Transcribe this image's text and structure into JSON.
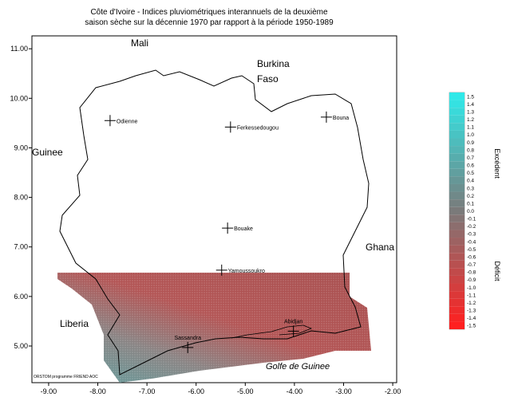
{
  "title": [
    "Côte d'Ivoire - Indices pluviométriques interannuels de la deuxième",
    "saison sèche sur la décennie 1970 par rapport à la période 1950-1989"
  ],
  "map": {
    "xlim": [
      -9.34,
      -1.92
    ],
    "ylim": [
      4.26,
      11.26
    ],
    "xticks": [
      {
        "value": -9,
        "label": "-9.00"
      },
      {
        "value": -8,
        "label": "-8.00"
      },
      {
        "value": -7,
        "label": "-7.00"
      },
      {
        "value": -6,
        "label": "-6.00"
      },
      {
        "value": -5,
        "label": "-5.00"
      },
      {
        "value": -4,
        "label": "-4.00"
      },
      {
        "value": -3,
        "label": "-3.00"
      },
      {
        "value": -2,
        "label": "-2.00"
      }
    ],
    "yticks": [
      {
        "value": 5,
        "label": "5.00"
      },
      {
        "value": 6,
        "label": "6.00"
      },
      {
        "value": 7,
        "label": "7.00"
      },
      {
        "value": 8,
        "label": "8.00"
      },
      {
        "value": 9,
        "label": "9.00"
      },
      {
        "value": 10,
        "label": "10.00"
      },
      {
        "value": 11,
        "label": "11.00"
      }
    ],
    "countries": [
      "Mali",
      "Burkina",
      "Faso",
      "Guinee",
      "Ghana",
      "Liberia"
    ],
    "sea": "Golfe de Guinee",
    "cities": [
      {
        "name": "Odienne",
        "lon": -7.75,
        "lat": 9.55
      },
      {
        "name": "Ferkessedougou",
        "lon": -5.3,
        "lat": 9.42
      },
      {
        "name": "Bouna",
        "lon": -3.35,
        "lat": 9.62
      },
      {
        "name": "Bouake",
        "lon": -5.36,
        "lat": 7.38
      },
      {
        "name": "Yamoussoukro",
        "lon": -5.48,
        "lat": 6.53
      },
      {
        "name": "Sassandra",
        "lon": -6.17,
        "lat": 4.97
      },
      {
        "name": "Abidjan",
        "lon": -4.02,
        "lat": 5.3
      }
    ],
    "credit": "ORSTOM programme FRIEND AOC"
  },
  "legend": {
    "labels": [
      "1.5",
      "1.4",
      "1.3",
      "1.2",
      "1.1",
      "1.0",
      "0.9",
      "0.8",
      "0.7",
      "0.6",
      "0.5",
      "0.4",
      "0.3",
      "0.2",
      "0.1",
      "0.0",
      "-0.1",
      "-0.2",
      "-0.3",
      "-0.4",
      "-0.5",
      "-0.6",
      "-0.7",
      "-0.8",
      "-0.9",
      "-1.0",
      "-1.1",
      "-1.2",
      "-1.3",
      "-1.4",
      "-1.5"
    ],
    "excess": "Excédent",
    "deficit": "Déficit"
  }
}
